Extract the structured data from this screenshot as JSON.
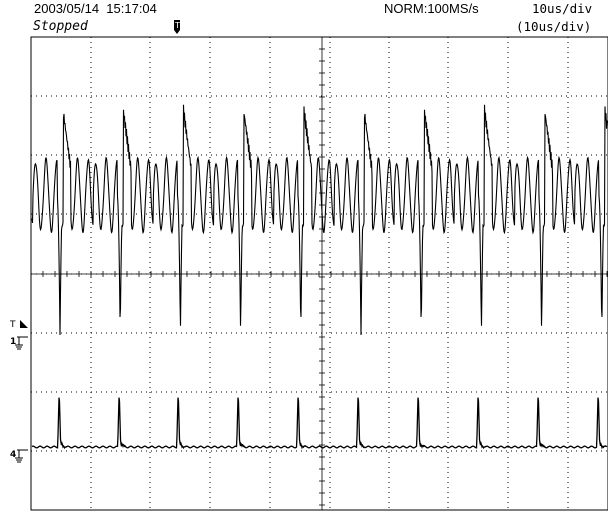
{
  "header": {
    "timestamp": "2003/05/14  15:17:04",
    "status": "Stopped",
    "acquisition": "NORM:100MS/s",
    "time_div": "10us/div",
    "time_div_zoom": "(10us/div)"
  },
  "markers": {
    "trigger_top": "T",
    "trigger_level": "T",
    "ch1": "1",
    "ch4": "4"
  },
  "colors": {
    "trace": "#000000",
    "grid": "#000000",
    "background": "#ffffff"
  }
}
